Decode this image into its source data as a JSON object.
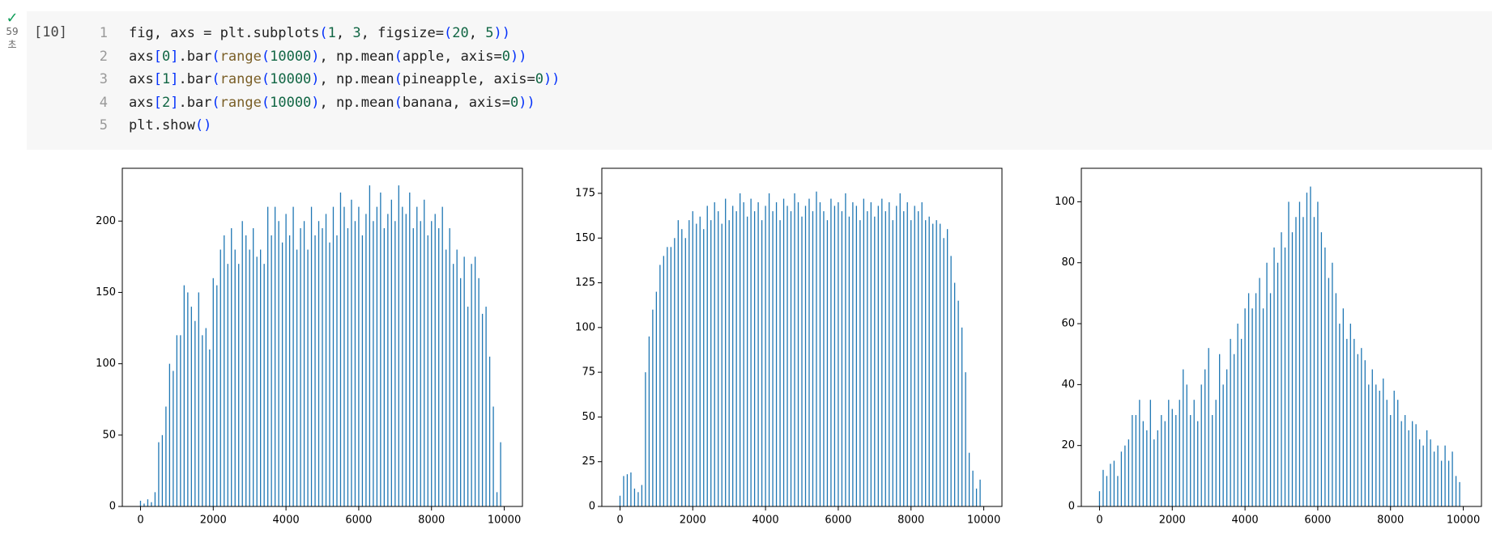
{
  "cell": {
    "status": "✓",
    "time": "59",
    "time_unit": "초",
    "execution_count": "[10]",
    "lines": [
      {
        "number": "1",
        "tokens": [
          [
            "fig, axs = plt.subplots",
            "#212121"
          ],
          [
            "(",
            "#0431fa"
          ],
          [
            "1",
            "#116644"
          ],
          [
            ", ",
            "#212121"
          ],
          [
            "3",
            "#116644"
          ],
          [
            ", figsize=",
            "#212121"
          ],
          [
            "(",
            "#0431fa"
          ],
          [
            "20",
            "#116644"
          ],
          [
            ", ",
            "#212121"
          ],
          [
            "5",
            "#116644"
          ],
          [
            "))",
            "#0431fa"
          ]
        ]
      },
      {
        "number": "2",
        "tokens": [
          [
            "axs",
            "#212121"
          ],
          [
            "[",
            "#0431fa"
          ],
          [
            "0",
            "#116644"
          ],
          [
            "]",
            "#0431fa"
          ],
          [
            ".bar",
            "#212121"
          ],
          [
            "(",
            "#0431fa"
          ],
          [
            "range",
            "#795e26"
          ],
          [
            "(",
            "#0431fa"
          ],
          [
            "10000",
            "#116644"
          ],
          [
            ")",
            "#0431fa"
          ],
          [
            ", np.mean",
            "#212121"
          ],
          [
            "(",
            "#0431fa"
          ],
          [
            "apple, axis=",
            "#212121"
          ],
          [
            "0",
            "#116644"
          ],
          [
            "))",
            "#0431fa"
          ]
        ]
      },
      {
        "number": "3",
        "tokens": [
          [
            "axs",
            "#212121"
          ],
          [
            "[",
            "#0431fa"
          ],
          [
            "1",
            "#116644"
          ],
          [
            "]",
            "#0431fa"
          ],
          [
            ".bar",
            "#212121"
          ],
          [
            "(",
            "#0431fa"
          ],
          [
            "range",
            "#795e26"
          ],
          [
            "(",
            "#0431fa"
          ],
          [
            "10000",
            "#116644"
          ],
          [
            ")",
            "#0431fa"
          ],
          [
            ", np.mean",
            "#212121"
          ],
          [
            "(",
            "#0431fa"
          ],
          [
            "pineapple, axis=",
            "#212121"
          ],
          [
            "0",
            "#116644"
          ],
          [
            "))",
            "#0431fa"
          ]
        ]
      },
      {
        "number": "4",
        "tokens": [
          [
            "axs",
            "#212121"
          ],
          [
            "[",
            "#0431fa"
          ],
          [
            "2",
            "#116644"
          ],
          [
            "]",
            "#0431fa"
          ],
          [
            ".bar",
            "#212121"
          ],
          [
            "(",
            "#0431fa"
          ],
          [
            "range",
            "#795e26"
          ],
          [
            "(",
            "#0431fa"
          ],
          [
            "10000",
            "#116644"
          ],
          [
            ")",
            "#0431fa"
          ],
          [
            ", np.mean",
            "#212121"
          ],
          [
            "(",
            "#0431fa"
          ],
          [
            "banana, axis=",
            "#212121"
          ],
          [
            "0",
            "#116644"
          ],
          [
            "))",
            "#0431fa"
          ]
        ]
      },
      {
        "number": "5",
        "tokens": [
          [
            "plt.show",
            "#212121"
          ],
          [
            "()",
            "#0431fa"
          ]
        ]
      }
    ]
  },
  "chart_data": [
    {
      "type": "bar",
      "color": "#1f77b4",
      "xlim": [
        -500,
        10500
      ],
      "ylim": [
        0,
        237
      ],
      "xticks": [
        0,
        2000,
        4000,
        6000,
        8000,
        10000
      ],
      "yticks": [
        0,
        50,
        100,
        150,
        200
      ],
      "x": [
        0,
        100,
        200,
        300,
        400,
        500,
        600,
        700,
        800,
        900,
        1000,
        1100,
        1200,
        1300,
        1400,
        1500,
        1600,
        1700,
        1800,
        1900,
        2000,
        2100,
        2200,
        2300,
        2400,
        2500,
        2600,
        2700,
        2800,
        2900,
        3000,
        3100,
        3200,
        3300,
        3400,
        3500,
        3600,
        3700,
        3800,
        3900,
        4000,
        4100,
        4200,
        4300,
        4400,
        4500,
        4600,
        4700,
        4800,
        4900,
        5000,
        5100,
        5200,
        5300,
        5400,
        5500,
        5600,
        5700,
        5800,
        5900,
        6000,
        6100,
        6200,
        6300,
        6400,
        6500,
        6600,
        6700,
        6800,
        6900,
        7000,
        7100,
        7200,
        7300,
        7400,
        7500,
        7600,
        7700,
        7800,
        7900,
        8000,
        8100,
        8200,
        8300,
        8400,
        8500,
        8600,
        8700,
        8800,
        8900,
        9000,
        9100,
        9200,
        9300,
        9400,
        9500,
        9600,
        9700,
        9800,
        9900
      ],
      "values": [
        4,
        2,
        5,
        3,
        10,
        45,
        50,
        70,
        100,
        95,
        120,
        120,
        155,
        150,
        140,
        130,
        150,
        120,
        125,
        110,
        160,
        155,
        180,
        190,
        170,
        195,
        180,
        170,
        200,
        190,
        180,
        195,
        175,
        180,
        170,
        210,
        190,
        210,
        200,
        185,
        205,
        190,
        210,
        180,
        195,
        200,
        180,
        210,
        190,
        200,
        195,
        205,
        185,
        210,
        190,
        220,
        210,
        195,
        215,
        200,
        210,
        190,
        205,
        225,
        200,
        210,
        220,
        195,
        205,
        215,
        200,
        225,
        210,
        205,
        220,
        195,
        210,
        200,
        215,
        190,
        200,
        205,
        195,
        210,
        180,
        195,
        170,
        180,
        160,
        175,
        140,
        170,
        175,
        160,
        135,
        140,
        105,
        70,
        10,
        45
      ]
    },
    {
      "type": "bar",
      "color": "#1f77b4",
      "xlim": [
        -500,
        10500
      ],
      "ylim": [
        0,
        189
      ],
      "xticks": [
        0,
        2000,
        4000,
        6000,
        8000,
        10000
      ],
      "yticks": [
        0,
        25,
        50,
        75,
        100,
        125,
        150,
        175
      ],
      "x": [
        0,
        100,
        200,
        300,
        400,
        500,
        600,
        700,
        800,
        900,
        1000,
        1100,
        1200,
        1300,
        1400,
        1500,
        1600,
        1700,
        1800,
        1900,
        2000,
        2100,
        2200,
        2300,
        2400,
        2500,
        2600,
        2700,
        2800,
        2900,
        3000,
        3100,
        3200,
        3300,
        3400,
        3500,
        3600,
        3700,
        3800,
        3900,
        4000,
        4100,
        4200,
        4300,
        4400,
        4500,
        4600,
        4700,
        4800,
        4900,
        5000,
        5100,
        5200,
        5300,
        5400,
        5500,
        5600,
        5700,
        5800,
        5900,
        6000,
        6100,
        6200,
        6300,
        6400,
        6500,
        6600,
        6700,
        6800,
        6900,
        7000,
        7100,
        7200,
        7300,
        7400,
        7500,
        7600,
        7700,
        7800,
        7900,
        8000,
        8100,
        8200,
        8300,
        8400,
        8500,
        8600,
        8700,
        8800,
        8900,
        9000,
        9100,
        9200,
        9300,
        9400,
        9500,
        9600,
        9700,
        9800,
        9900
      ],
      "values": [
        6,
        17,
        18,
        19,
        10,
        8,
        12,
        75,
        95,
        110,
        120,
        135,
        140,
        145,
        145,
        150,
        160,
        155,
        150,
        160,
        165,
        158,
        162,
        155,
        168,
        160,
        170,
        165,
        158,
        172,
        160,
        168,
        165,
        175,
        170,
        162,
        172,
        165,
        170,
        160,
        168,
        175,
        165,
        170,
        160,
        172,
        168,
        165,
        175,
        170,
        162,
        168,
        172,
        165,
        176,
        170,
        165,
        160,
        172,
        168,
        170,
        165,
        175,
        162,
        170,
        168,
        160,
        172,
        165,
        170,
        162,
        168,
        172,
        165,
        170,
        160,
        168,
        175,
        165,
        170,
        160,
        168,
        165,
        170,
        160,
        162,
        158,
        160,
        158,
        150,
        155,
        140,
        125,
        115,
        100,
        75,
        30,
        20,
        10,
        15
      ]
    },
    {
      "type": "bar",
      "color": "#1f77b4",
      "xlim": [
        -500,
        10500
      ],
      "ylim": [
        0,
        111
      ],
      "xticks": [
        0,
        2000,
        4000,
        6000,
        8000,
        10000
      ],
      "yticks": [
        0,
        20,
        40,
        60,
        80,
        100
      ],
      "x": [
        0,
        100,
        200,
        300,
        400,
        500,
        600,
        700,
        800,
        900,
        1000,
        1100,
        1200,
        1300,
        1400,
        1500,
        1600,
        1700,
        1800,
        1900,
        2000,
        2100,
        2200,
        2300,
        2400,
        2500,
        2600,
        2700,
        2800,
        2900,
        3000,
        3100,
        3200,
        3300,
        3400,
        3500,
        3600,
        3700,
        3800,
        3900,
        4000,
        4100,
        4200,
        4300,
        4400,
        4500,
        4600,
        4700,
        4800,
        4900,
        5000,
        5100,
        5200,
        5300,
        5400,
        5500,
        5600,
        5700,
        5800,
        5900,
        6000,
        6100,
        6200,
        6300,
        6400,
        6500,
        6600,
        6700,
        6800,
        6900,
        7000,
        7100,
        7200,
        7300,
        7400,
        7500,
        7600,
        7700,
        7800,
        7900,
        8000,
        8100,
        8200,
        8300,
        8400,
        8500,
        8600,
        8700,
        8800,
        8900,
        9000,
        9100,
        9200,
        9300,
        9400,
        9500,
        9600,
        9700,
        9800,
        9900
      ],
      "values": [
        5,
        12,
        10,
        14,
        15,
        10,
        18,
        20,
        22,
        30,
        30,
        35,
        28,
        25,
        35,
        22,
        25,
        30,
        28,
        35,
        32,
        30,
        35,
        45,
        40,
        30,
        35,
        28,
        40,
        45,
        52,
        30,
        35,
        50,
        40,
        45,
        55,
        50,
        60,
        55,
        65,
        70,
        65,
        70,
        75,
        65,
        80,
        70,
        85,
        80,
        90,
        85,
        100,
        90,
        95,
        100,
        95,
        103,
        105,
        95,
        100,
        90,
        85,
        75,
        80,
        70,
        60,
        65,
        55,
        60,
        55,
        50,
        52,
        48,
        40,
        45,
        40,
        38,
        42,
        35,
        30,
        38,
        35,
        28,
        30,
        25,
        28,
        27,
        22,
        20,
        25,
        22,
        18,
        20,
        15,
        20,
        15,
        18,
        10,
        8
      ]
    }
  ]
}
